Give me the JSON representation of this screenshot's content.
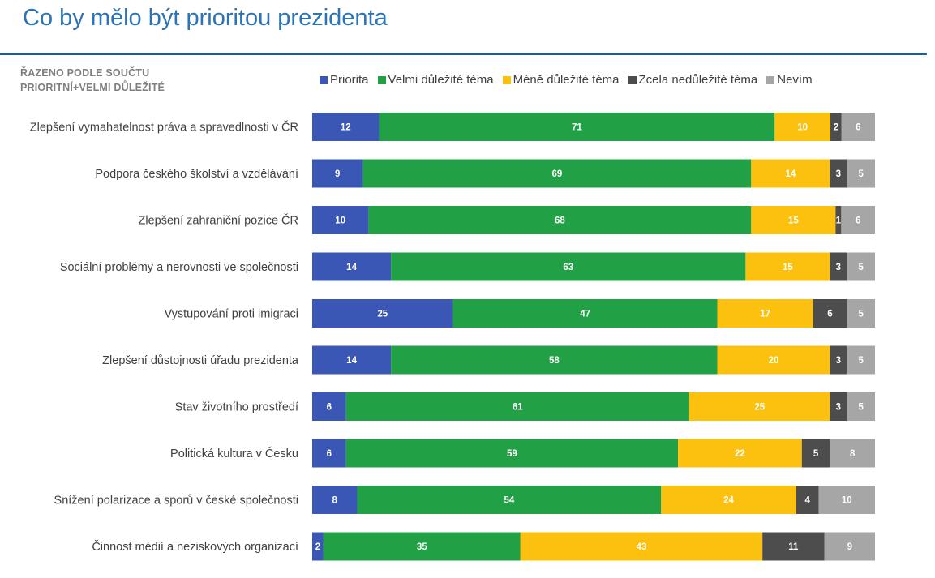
{
  "page": {
    "title": "Co by mělo být prioritou prezidenta",
    "sort_note_line1": "ŘAZENO PODLE SOUČTU",
    "sort_note_line2": "PRIORITNÍ+VELMI DŮLEŽITÉ"
  },
  "colors": {
    "title": "#2e74b5",
    "rule": "#1f5e96"
  },
  "chart_data": {
    "type": "bar",
    "orientation": "horizontal",
    "stacked": true,
    "percent_stacked": true,
    "title": "Co by mělo být prioritou prezidenta",
    "xlabel": "",
    "ylabel": "",
    "legend_position": "top",
    "grid": false,
    "categories": [
      "Zlepšení vymahatelnost práva a spravedlnosti v ČR",
      "Podpora českého školství a vzdělávání",
      "Zlepšení zahraniční pozice ČR",
      "Sociální problémy a nerovnosti ve společnosti",
      "Vystupování proti imigraci",
      "Zlepšení důstojnosti úřadu prezidenta",
      "Stav životního prostředí",
      "Politická kultura v Česku",
      "Snížení polarizace a sporů v české společnosti",
      "Činnost médií a neziskových organizací"
    ],
    "series": [
      {
        "name": "Priorita",
        "color": "#3a57b5",
        "label_color": "#ffffff",
        "values": [
          12,
          9,
          10,
          14,
          25,
          14,
          6,
          6,
          8,
          2
        ]
      },
      {
        "name": "Velmi důležité téma",
        "color": "#22a045",
        "label_color": "#ffffff",
        "values": [
          71,
          69,
          68,
          63,
          47,
          58,
          61,
          59,
          54,
          35
        ]
      },
      {
        "name": "Méně důležité téma",
        "color": "#fcc10e",
        "label_color": "#ffffff",
        "values": [
          10,
          14,
          15,
          15,
          17,
          20,
          25,
          22,
          24,
          43
        ]
      },
      {
        "name": "Zcela nedůležité téma",
        "color": "#4d4d4d",
        "label_color": "#ffffff",
        "values": [
          2,
          3,
          1,
          3,
          6,
          3,
          3,
          5,
          4,
          11
        ]
      },
      {
        "name": "Nevím",
        "color": "#a6a6a6",
        "label_color": "#ffffff",
        "values": [
          6,
          5,
          6,
          5,
          5,
          5,
          5,
          8,
          10,
          9
        ]
      }
    ]
  }
}
